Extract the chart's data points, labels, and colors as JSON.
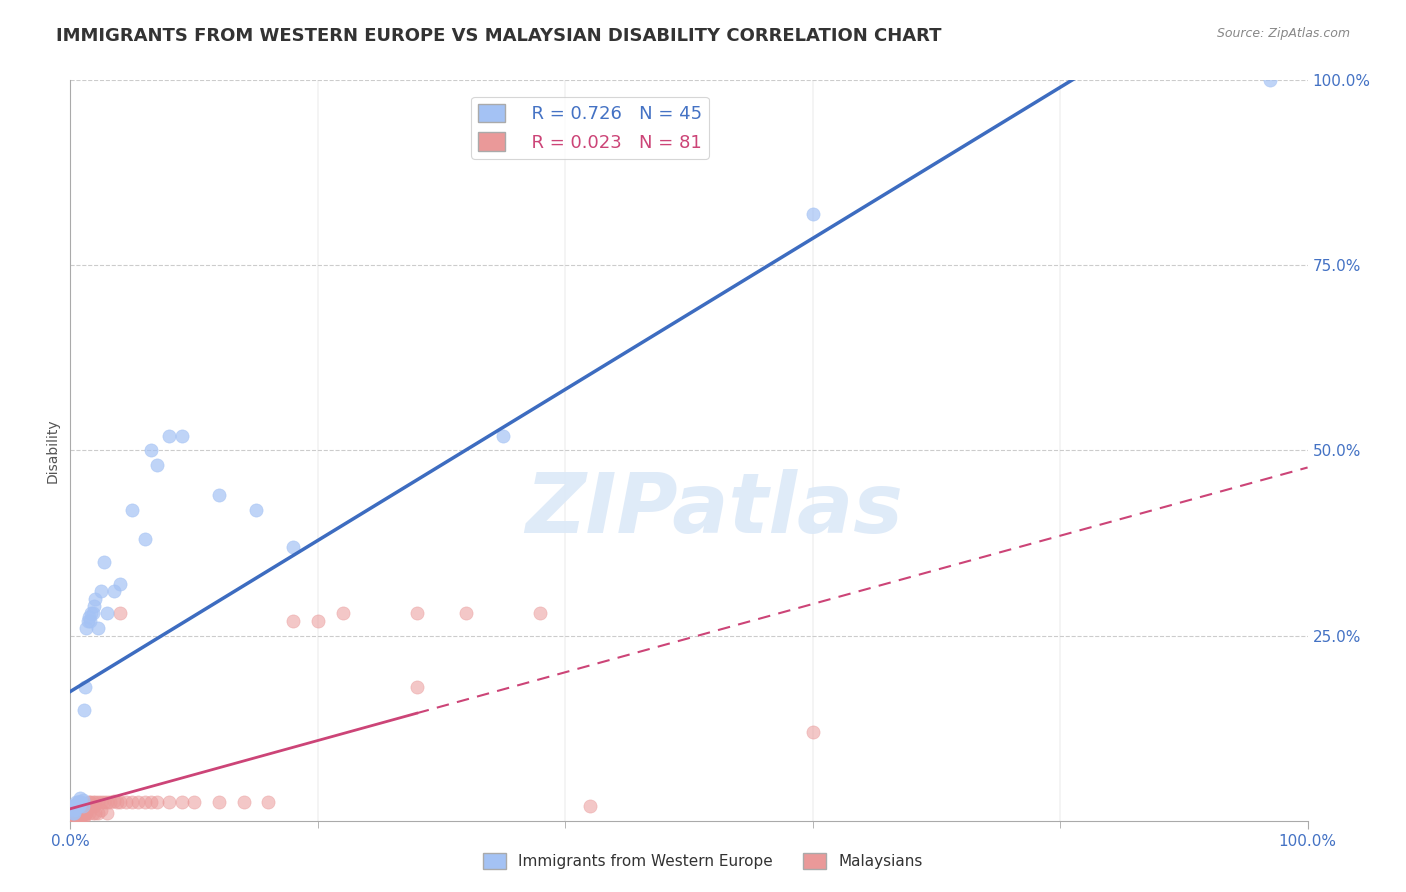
{
  "title": "IMMIGRANTS FROM WESTERN EUROPE VS MALAYSIAN DISABILITY CORRELATION CHART",
  "source": "Source: ZipAtlas.com",
  "ylabel": "Disability",
  "blue_label": "Immigrants from Western Europe",
  "pink_label": "Malaysians",
  "blue_R": 0.726,
  "blue_N": 45,
  "pink_R": 0.023,
  "pink_N": 81,
  "blue_color": "#a4c2f4",
  "pink_color": "#ea9999",
  "blue_line_color": "#3d6cc0",
  "pink_line_color": "#cc4477",
  "watermark": "ZIPatlas",
  "blue_scatter_x": [
    0.001,
    0.002,
    0.002,
    0.003,
    0.003,
    0.004,
    0.005,
    0.005,
    0.006,
    0.006,
    0.007,
    0.007,
    0.008,
    0.008,
    0.009,
    0.01,
    0.01,
    0.011,
    0.012,
    0.013,
    0.014,
    0.015,
    0.016,
    0.017,
    0.018,
    0.019,
    0.02,
    0.022,
    0.025,
    0.027,
    0.03,
    0.035,
    0.04,
    0.05,
    0.06,
    0.065,
    0.07,
    0.08,
    0.09,
    0.12,
    0.15,
    0.18,
    0.35,
    0.6,
    0.97
  ],
  "blue_scatter_y": [
    0.02,
    0.01,
    0.015,
    0.01,
    0.02,
    0.015,
    0.02,
    0.025,
    0.02,
    0.025,
    0.02,
    0.025,
    0.025,
    0.03,
    0.025,
    0.02,
    0.028,
    0.15,
    0.18,
    0.26,
    0.27,
    0.275,
    0.27,
    0.28,
    0.28,
    0.29,
    0.3,
    0.26,
    0.31,
    0.35,
    0.28,
    0.31,
    0.32,
    0.42,
    0.38,
    0.5,
    0.48,
    0.52,
    0.52,
    0.44,
    0.42,
    0.37,
    0.52,
    0.82,
    1.0
  ],
  "pink_scatter_x": [
    0.001,
    0.001,
    0.001,
    0.002,
    0.002,
    0.002,
    0.003,
    0.003,
    0.003,
    0.003,
    0.004,
    0.004,
    0.004,
    0.005,
    0.005,
    0.005,
    0.006,
    0.006,
    0.006,
    0.006,
    0.007,
    0.007,
    0.007,
    0.008,
    0.008,
    0.008,
    0.009,
    0.009,
    0.01,
    0.01,
    0.01,
    0.011,
    0.011,
    0.012,
    0.012,
    0.013,
    0.013,
    0.014,
    0.015,
    0.015,
    0.016,
    0.016,
    0.017,
    0.018,
    0.018,
    0.019,
    0.02,
    0.02,
    0.022,
    0.022,
    0.025,
    0.025,
    0.027,
    0.03,
    0.03,
    0.032,
    0.035,
    0.038,
    0.04,
    0.04,
    0.045,
    0.05,
    0.055,
    0.06,
    0.065,
    0.07,
    0.08,
    0.09,
    0.1,
    0.12,
    0.14,
    0.16,
    0.18,
    0.2,
    0.22,
    0.28,
    0.32,
    0.38,
    0.42,
    0.28,
    0.6
  ],
  "pink_scatter_y": [
    0.005,
    0.01,
    0.015,
    0.005,
    0.01,
    0.02,
    0.005,
    0.01,
    0.015,
    0.02,
    0.005,
    0.01,
    0.02,
    0.005,
    0.01,
    0.02,
    0.005,
    0.01,
    0.015,
    0.025,
    0.005,
    0.01,
    0.02,
    0.005,
    0.01,
    0.025,
    0.005,
    0.02,
    0.005,
    0.01,
    0.02,
    0.005,
    0.02,
    0.01,
    0.02,
    0.01,
    0.02,
    0.02,
    0.01,
    0.025,
    0.02,
    0.025,
    0.02,
    0.01,
    0.025,
    0.02,
    0.01,
    0.025,
    0.01,
    0.025,
    0.015,
    0.025,
    0.025,
    0.01,
    0.025,
    0.025,
    0.027,
    0.025,
    0.025,
    0.28,
    0.025,
    0.025,
    0.025,
    0.025,
    0.025,
    0.025,
    0.025,
    0.025,
    0.025,
    0.025,
    0.025,
    0.025,
    0.27,
    0.27,
    0.28,
    0.28,
    0.28,
    0.28,
    0.02,
    0.18,
    0.12
  ],
  "xlim": [
    0.0,
    1.0
  ],
  "ylim": [
    0.0,
    1.0
  ],
  "xtick_positions": [
    0.0,
    1.0
  ],
  "xtick_labels": [
    "0.0%",
    "100.0%"
  ],
  "right_yticks": [
    0.25,
    0.5,
    0.75,
    1.0
  ],
  "right_yticklabels": [
    "25.0%",
    "50.0%",
    "75.0%",
    "100.0%"
  ],
  "grid_color": "#cccccc",
  "title_color": "#333333",
  "tick_color": "#4472c4",
  "background_color": "#ffffff",
  "title_fontsize": 13,
  "axis_label_fontsize": 10,
  "tick_fontsize": 11,
  "legend_fontsize": 13
}
